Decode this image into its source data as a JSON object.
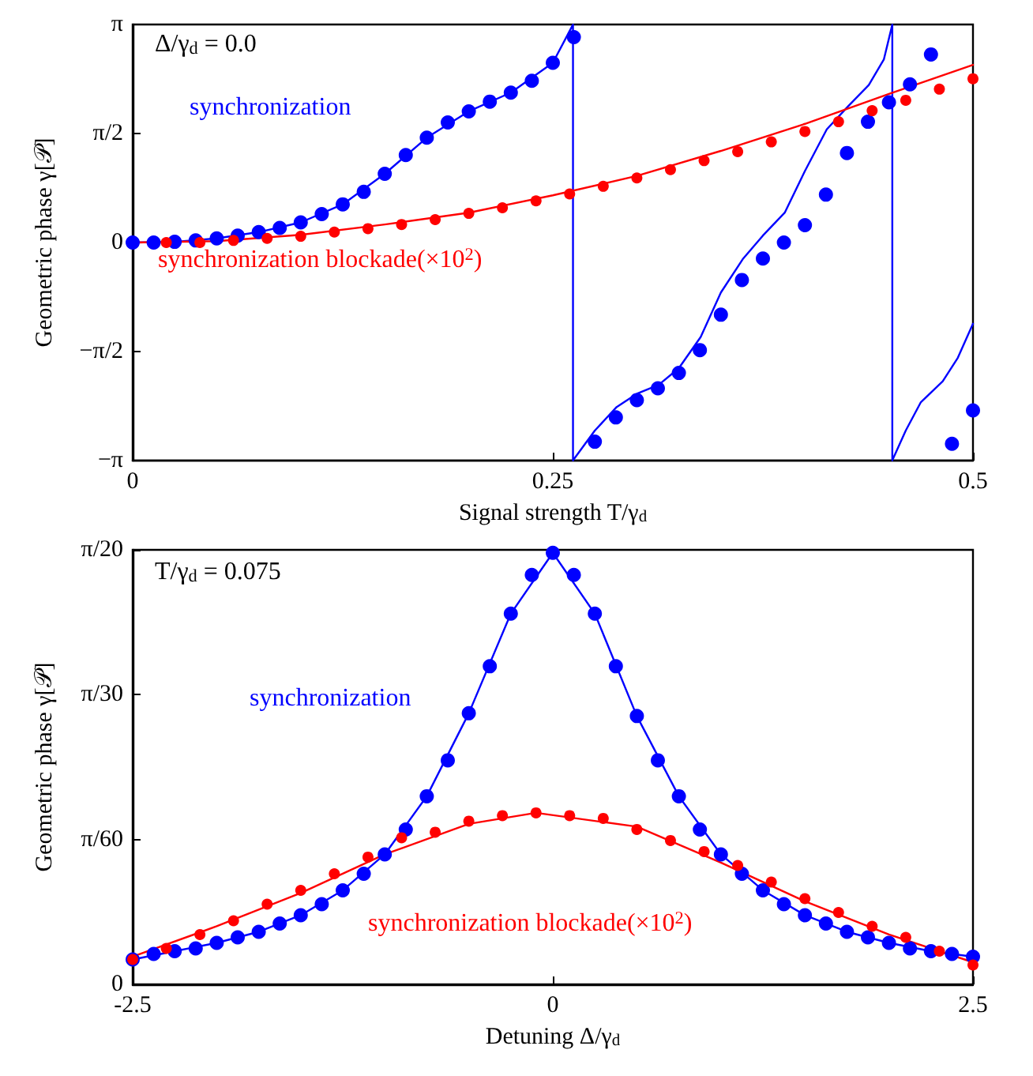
{
  "chart_data": [
    {
      "type": "scatter",
      "xlabel": "Signal strength T/γ$_{d}$",
      "ylabel": "Geometric phase γ[𝒫]",
      "annotations": [
        "Δ/γ$_{d}$ = 0.0"
      ],
      "xlim": [
        0,
        0.5
      ],
      "xticks": [
        0,
        0.25,
        0.5
      ],
      "ylim": [
        -3.1416,
        3.1416
      ],
      "yticks": [
        {
          "value": -3.1416,
          "label": "−π"
        },
        {
          "value": -1.5708,
          "label": "−π/2"
        },
        0,
        {
          "value": 1.5708,
          "label": "π/2"
        },
        {
          "value": 3.1416,
          "label": "π"
        }
      ],
      "marker": "circle",
      "series": [
        {
          "name": "synchronization",
          "type": "line",
          "marker": "none",
          "color": "#0000ff",
          "x": [
            0,
            0.025,
            0.05,
            0.075,
            0.1,
            0.125,
            0.15,
            0.175,
            0.2,
            0.225,
            0.25,
            0.262,
            0.262,
            0.275,
            0.288,
            0.3,
            0.313,
            0.325,
            0.338,
            0.35,
            0.363,
            0.375,
            0.388,
            0.4,
            0.413,
            0.426,
            0.438,
            0.447,
            0.452,
            0.452,
            0.46,
            0.469,
            0.482,
            0.491,
            0.5
          ],
          "values": [
            0,
            0.01,
            0.06,
            0.15,
            0.29,
            0.55,
            0.99,
            1.51,
            1.89,
            2.16,
            2.59,
            3.14,
            -3.14,
            -2.71,
            -2.37,
            -2.18,
            -2.05,
            -1.81,
            -1.36,
            -0.72,
            -0.24,
            0.1,
            0.43,
            1.03,
            1.63,
            1.97,
            2.27,
            2.64,
            3.14,
            -3.14,
            -2.71,
            -2.3,
            -2,
            -1.66,
            -1.17
          ]
        },
        {
          "color": "#0000ff",
          "x": [
            0,
            0.0125,
            0.025,
            0.0375,
            0.05,
            0.0625,
            0.075,
            0.0875,
            0.1,
            0.1125,
            0.125,
            0.1375,
            0.15,
            0.1625,
            0.175,
            0.1875,
            0.2,
            0.2125,
            0.225,
            0.2375,
            0.25,
            0.2625,
            0.275,
            0.2875,
            0.3,
            0.3125,
            0.325,
            0.3375,
            0.35,
            0.3625,
            0.375,
            0.3875,
            0.4,
            0.4125,
            0.425,
            0.4375,
            0.45,
            0.4625,
            0.475,
            0.4875,
            0.5
          ],
          "values": [
            0,
            0,
            0.01,
            0.03,
            0.06,
            0.1,
            0.15,
            0.21,
            0.29,
            0.41,
            0.55,
            0.73,
            0.99,
            1.26,
            1.51,
            1.73,
            1.89,
            2.03,
            2.16,
            2.33,
            2.59,
            2.96,
            -2.87,
            -2.52,
            -2.27,
            -2.1,
            -1.88,
            -1.55,
            -1.04,
            -0.54,
            -0.23,
            0,
            0.25,
            0.69,
            1.29,
            1.74,
            2.02,
            2.28,
            2.71,
            -2.9,
            -2.42
          ]
        },
        {
          "name": "synchronization blockade(×10$^{2}$)",
          "type": "line",
          "marker": "none",
          "color": "#ff0000",
          "x": [
            0,
            0.05,
            0.1,
            0.15,
            0.2,
            0.25,
            0.3,
            0.35,
            0.4,
            0.45,
            0.5
          ],
          "values": [
            0,
            0.02,
            0.11,
            0.26,
            0.43,
            0.68,
            0.96,
            1.32,
            1.71,
            2.14,
            2.56
          ]
        },
        {
          "color": "#ff0000",
          "x": [
            0.02,
            0.04,
            0.06,
            0.08,
            0.1,
            0.12,
            0.14,
            0.16,
            0.18,
            0.2,
            0.22,
            0.24,
            0.26,
            0.28,
            0.3,
            0.32,
            0.34,
            0.36,
            0.38,
            0.4,
            0.42,
            0.44,
            0.46,
            0.48,
            0.5
          ],
          "values": [
            0,
            0,
            0.03,
            0.06,
            0.09,
            0.15,
            0.2,
            0.26,
            0.33,
            0.42,
            0.5,
            0.6,
            0.7,
            0.81,
            0.93,
            1.05,
            1.18,
            1.31,
            1.45,
            1.6,
            1.74,
            1.9,
            2.05,
            2.21,
            2.36
          ]
        }
      ]
    },
    {
      "type": "scatter",
      "xlabel": "Detuning Δ/γ$_{d}$",
      "ylabel": "Geometric phase γ[𝒫]",
      "annotations": [
        "T/γ$_{d}$ = 0.075"
      ],
      "xlim": [
        -2.5,
        2.5
      ],
      "xticks": [
        -2.5,
        0,
        2.5
      ],
      "ylim": [
        0,
        0.15708
      ],
      "yticks": [
        0,
        {
          "value": 0.05236,
          "label": "π/60"
        },
        {
          "value": 0.10472,
          "label": "π/30"
        },
        {
          "value": 0.15708,
          "label": "π/20"
        }
      ],
      "marker": "circle",
      "series": [
        {
          "name": "synchronization",
          "type": "line",
          "marker": "none",
          "color": "#0000ff",
          "x": [
            -2.5,
            -2.25,
            -2,
            -1.75,
            -1.5,
            -1.25,
            -1,
            -0.75,
            -0.5,
            -0.25,
            0,
            0.25,
            0.5,
            0.75,
            1,
            1.25,
            1.5,
            1.75,
            2,
            2.25,
            2.5
          ],
          "values": [
            0.009,
            0.012,
            0.015,
            0.019,
            0.025,
            0.034,
            0.047,
            0.068,
            0.098,
            0.134,
            0.156,
            0.134,
            0.097,
            0.068,
            0.047,
            0.034,
            0.025,
            0.019,
            0.015,
            0.012,
            0.01
          ]
        },
        {
          "color": "#0000ff",
          "x": [
            -2.5,
            -2.375,
            -2.25,
            -2.125,
            -2,
            -1.875,
            -1.75,
            -1.625,
            -1.5,
            -1.375,
            -1.25,
            -1.125,
            -1,
            -0.875,
            -0.75,
            -0.625,
            -0.5,
            -0.375,
            -0.25,
            -0.125,
            0,
            0.125,
            0.25,
            0.375,
            0.5,
            0.625,
            0.75,
            0.875,
            1,
            1.125,
            1.25,
            1.375,
            1.5,
            1.625,
            1.75,
            1.875,
            2,
            2.125,
            2.25,
            2.375,
            2.5
          ],
          "values": [
            0.009,
            0.011,
            0.012,
            0.013,
            0.015,
            0.017,
            0.019,
            0.022,
            0.025,
            0.029,
            0.034,
            0.04,
            0.047,
            0.056,
            0.068,
            0.081,
            0.098,
            0.115,
            0.134,
            0.148,
            0.156,
            0.148,
            0.134,
            0.115,
            0.097,
            0.081,
            0.068,
            0.056,
            0.047,
            0.04,
            0.034,
            0.029,
            0.025,
            0.022,
            0.019,
            0.017,
            0.015,
            0.013,
            0.012,
            0.011,
            0.01
          ]
        },
        {
          "name": "synchronization blockade(×10$^{2}$)",
          "type": "line",
          "marker": "none",
          "color": "#ff0000",
          "x": [
            -2.5,
            -2,
            -1.5,
            -1,
            -0.5,
            -0.1,
            0.5,
            1,
            1.5,
            2,
            2.5
          ],
          "values": [
            0.01,
            0.021,
            0.033,
            0.047,
            0.058,
            0.062,
            0.057,
            0.044,
            0.03,
            0.018,
            0.008
          ]
        },
        {
          "color": "#ff0000",
          "x": [
            -2.5,
            -2.3,
            -2.1,
            -1.9,
            -1.7,
            -1.5,
            -1.3,
            -1.1,
            -0.9,
            -0.7,
            -0.5,
            -0.3,
            -0.1,
            0.1,
            0.3,
            0.5,
            0.7,
            0.9,
            1.1,
            1.3,
            1.5,
            1.7,
            1.9,
            2.1,
            2.3,
            2.5
          ],
          "values": [
            0.009,
            0.013,
            0.018,
            0.023,
            0.029,
            0.034,
            0.04,
            0.046,
            0.053,
            0.055,
            0.059,
            0.061,
            0.062,
            0.061,
            0.06,
            0.056,
            0.052,
            0.048,
            0.043,
            0.037,
            0.031,
            0.026,
            0.021,
            0.017,
            0.012,
            0.007
          ]
        }
      ]
    }
  ]
}
